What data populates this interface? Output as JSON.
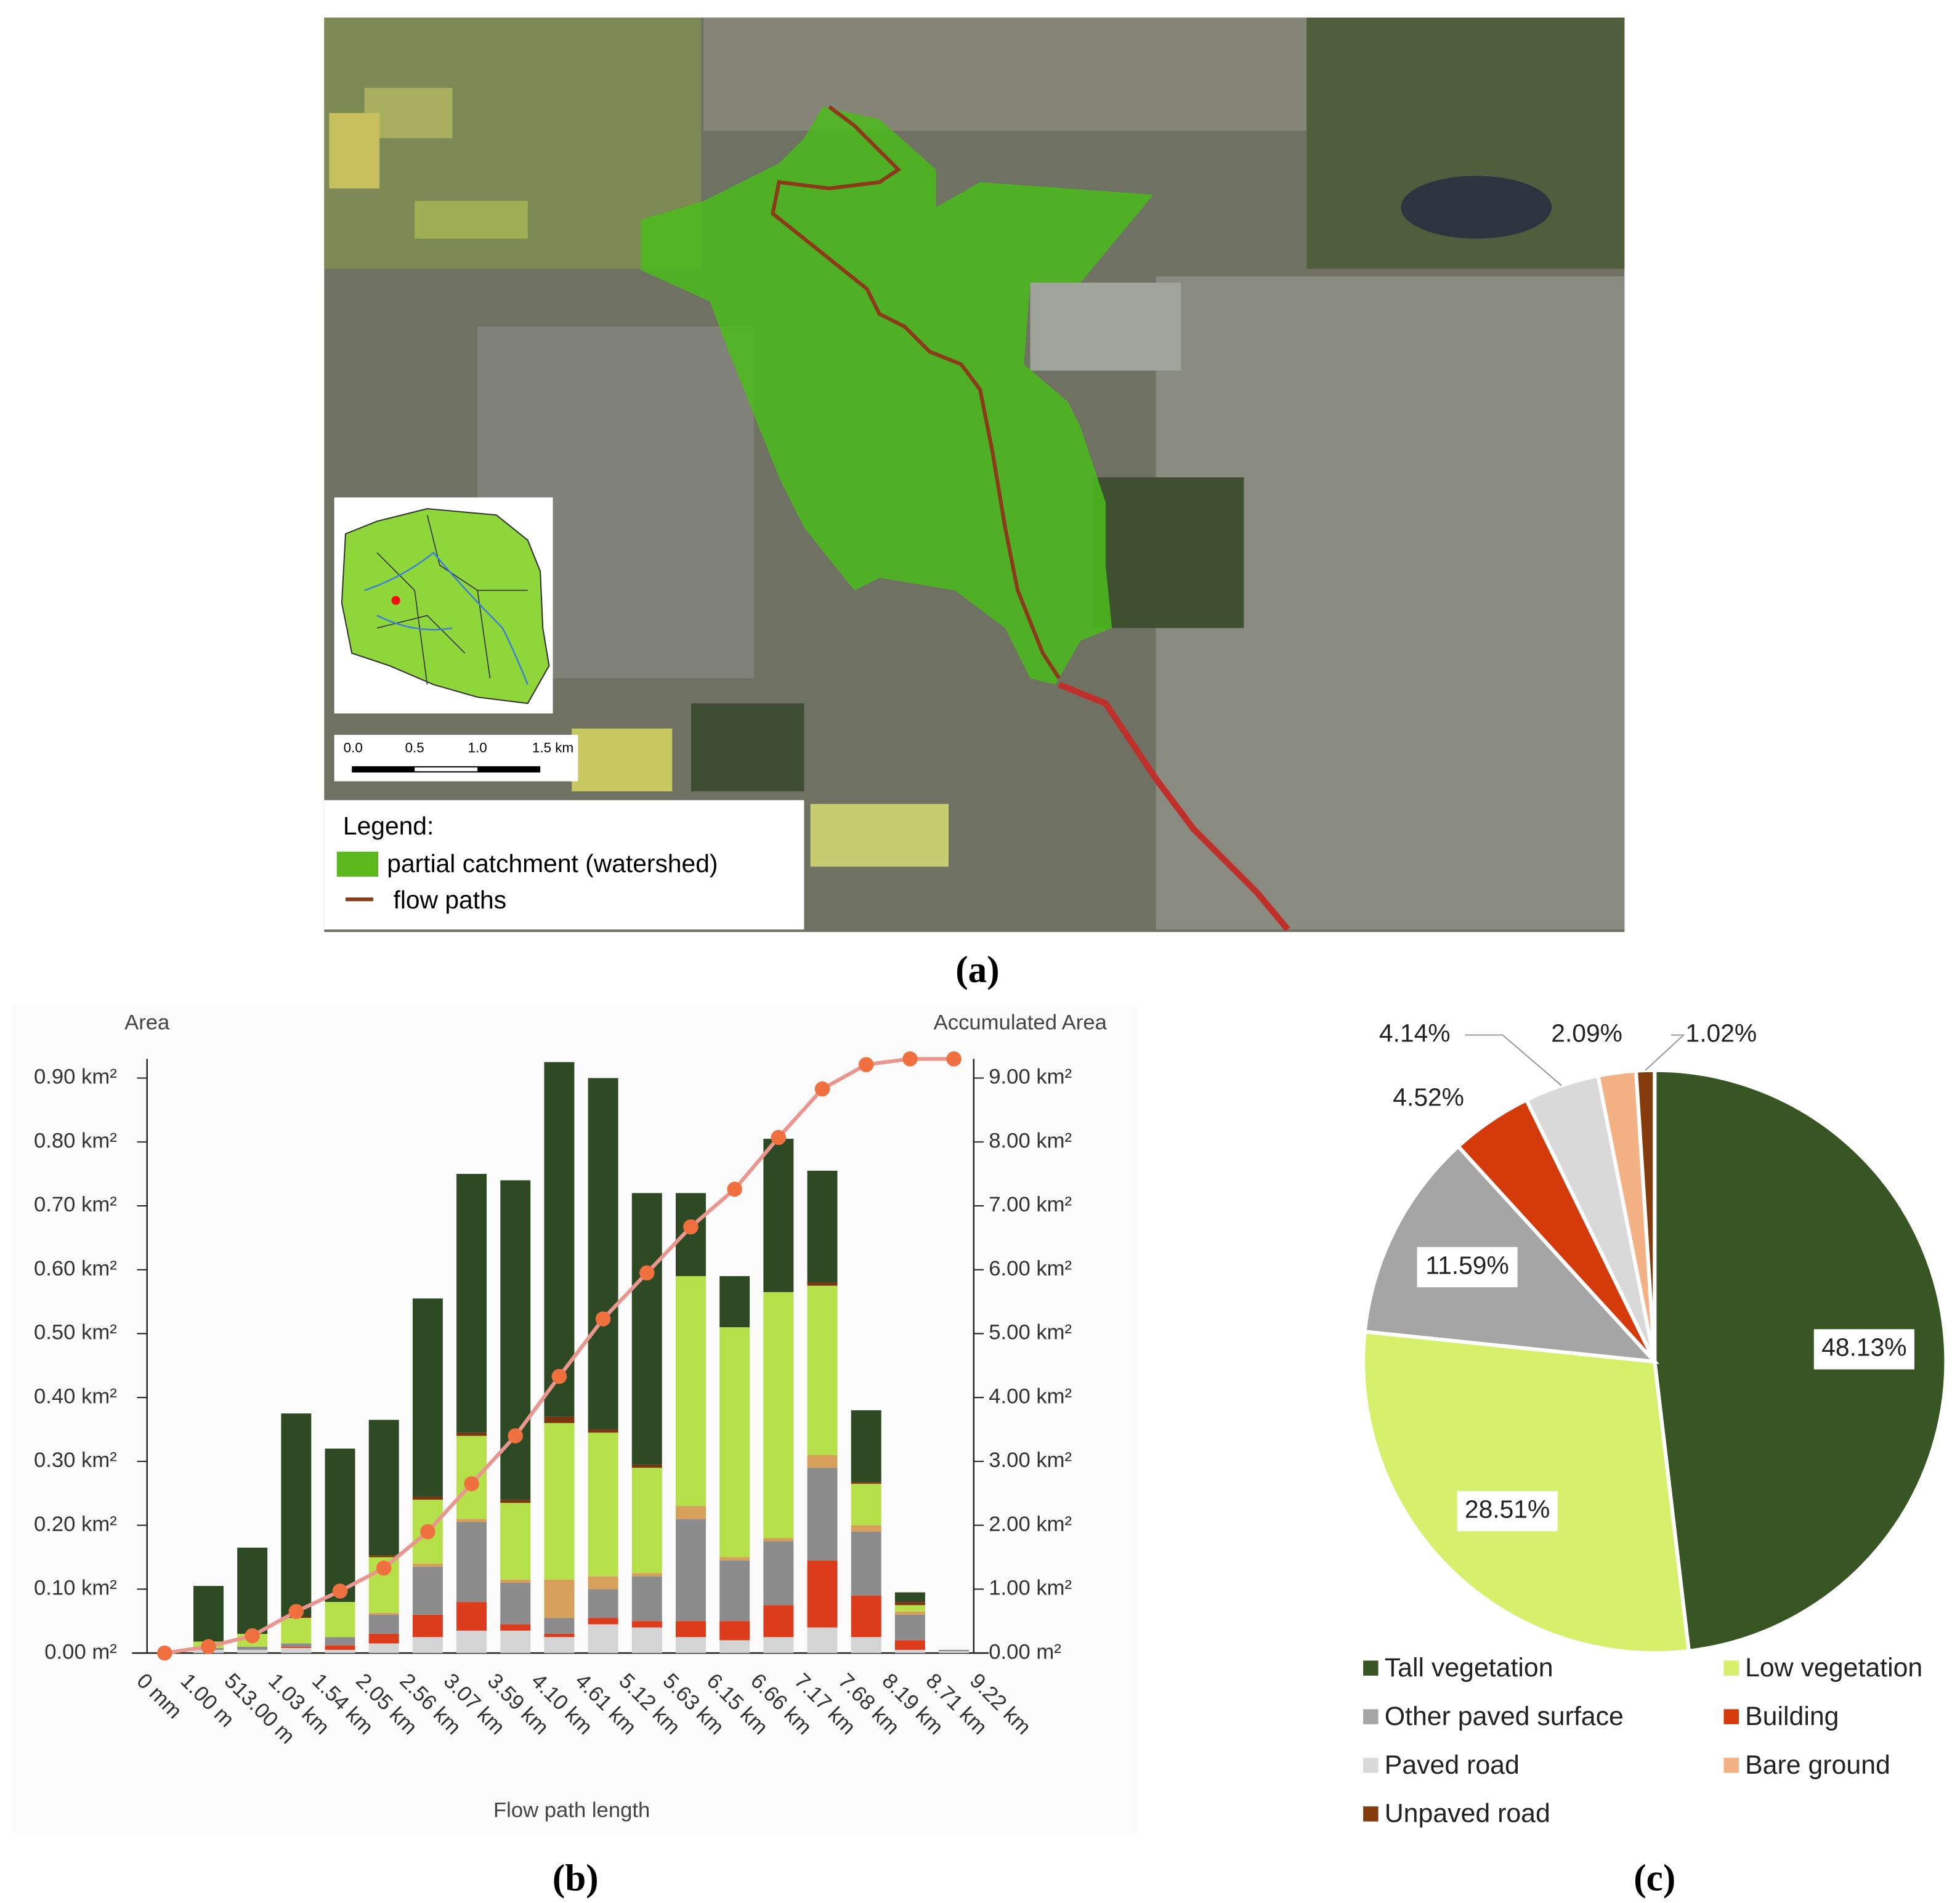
{
  "map": {
    "scale_labels": [
      "0.0",
      "0.5",
      "1.0",
      "1.5 km"
    ],
    "legend": {
      "title": "Legend:",
      "items": [
        "partial catchment (watershed)",
        "flow paths"
      ]
    }
  },
  "captions": [
    "(a)",
    "(b)",
    "(c)"
  ],
  "chart_data": [
    {
      "type": "bar",
      "stacked": true,
      "y_label": "Area",
      "y2_label": "Accumulated Area",
      "x_label": "Flow path length",
      "categories": [
        "0 mm",
        "1.00 m",
        "513.00 m",
        "1.03 km",
        "1.54 km",
        "2.05 km",
        "2.56 km",
        "3.07 km",
        "3.59 km",
        "4.10 km",
        "4.61 km",
        "5.12 km",
        "5.63 km",
        "6.15 km",
        "6.66 km",
        "7.17 km",
        "7.68 km",
        "8.19 km",
        "8.71 km",
        "9.22 km"
      ],
      "series": [
        {
          "color": "#d4d4d4",
          "values": [
            0,
            0.005,
            0.005,
            0.008,
            0.005,
            0.015,
            0.025,
            0.035,
            0.035,
            0.025,
            0.045,
            0.04,
            0.025,
            0.02,
            0.025,
            0.04,
            0.025,
            0.005,
            0.003,
            null
          ]
        },
        {
          "color": "#dd3c1c",
          "values": [
            0,
            0,
            0,
            0.002,
            0.007,
            0.015,
            0.035,
            0.045,
            0.01,
            0.005,
            0.01,
            0.01,
            0.025,
            0.03,
            0.05,
            0.105,
            0.065,
            0.015,
            0,
            null
          ]
        },
        {
          "color": "#8c8c8c",
          "values": [
            0,
            0.003,
            0.005,
            0.005,
            0.013,
            0.03,
            0.075,
            0.125,
            0.065,
            0.025,
            0.045,
            0.07,
            0.16,
            0.095,
            0.1,
            0.145,
            0.1,
            0.04,
            0.002,
            null
          ]
        },
        {
          "color": "#d6a05a",
          "values": [
            0,
            0,
            0,
            0,
            0,
            0.003,
            0.005,
            0.005,
            0.005,
            0.06,
            0.02,
            0.005,
            0.02,
            0.005,
            0.005,
            0.02,
            0.01,
            0.005,
            0,
            null
          ]
        },
        {
          "color": "#b5e04a",
          "values": [
            0,
            0.01,
            0.02,
            0.04,
            0.055,
            0.087,
            0.1,
            0.13,
            0.12,
            0.245,
            0.225,
            0.165,
            0.36,
            0.36,
            0.385,
            0.265,
            0.065,
            0.01,
            0,
            null
          ]
        },
        {
          "color": "#7a3410",
          "values": [
            0,
            0,
            0,
            0.002,
            0,
            0.003,
            0.005,
            0.005,
            0.005,
            0.01,
            0.005,
            0.005,
            0,
            0,
            0,
            0.005,
            0.003,
            0.005,
            0,
            null
          ]
        },
        {
          "color": "#2e4a25",
          "values": [
            0,
            0.087,
            0.135,
            0.318,
            0.24,
            0.212,
            0.31,
            0.405,
            0.5,
            0.555,
            0.55,
            0.425,
            0.13,
            0.08,
            0.24,
            0.175,
            0.112,
            0.015,
            0,
            null
          ]
        },
        {
          "type": "line",
          "axis": "y2",
          "color": "#e8968e",
          "marker_color": "#f07040",
          "values": [
            0,
            0.1,
            0.27,
            0.65,
            0.97,
            1.33,
            1.9,
            2.65,
            3.4,
            4.33,
            5.23,
            5.95,
            6.67,
            7.26,
            8.07,
            8.83,
            9.21,
            9.3,
            9.3,
            null
          ]
        }
      ],
      "ylim": [
        0,
        0.93
      ],
      "yticks": [
        {
          "value": 0,
          "label": "0.00 m²"
        },
        {
          "value": 0.1,
          "label": "0.10 km²"
        },
        {
          "value": 0.2,
          "label": "0.20 km²"
        },
        {
          "value": 0.3,
          "label": "0.30 km²"
        },
        {
          "value": 0.4,
          "label": "0.40 km²"
        },
        {
          "value": 0.5,
          "label": "0.50 km²"
        },
        {
          "value": 0.6,
          "label": "0.60 km²"
        },
        {
          "value": 0.7,
          "label": "0.70 km²"
        },
        {
          "value": 0.8,
          "label": "0.80 km²"
        },
        {
          "value": 0.9,
          "label": "0.90 km²"
        }
      ],
      "y2lim": [
        0,
        9.3
      ],
      "y2ticks": [
        {
          "value": 0,
          "label": "0.00 m²"
        },
        {
          "value": 1,
          "label": "1.00 km²"
        },
        {
          "value": 2,
          "label": "2.00 km²"
        },
        {
          "value": 3,
          "label": "3.00 km²"
        },
        {
          "value": 4,
          "label": "4.00 km²"
        },
        {
          "value": 5,
          "label": "5.00 km²"
        },
        {
          "value": 6,
          "label": "6.00 km²"
        },
        {
          "value": 7,
          "label": "7.00 km²"
        },
        {
          "value": 8,
          "label": "8.00 km²"
        },
        {
          "value": 9,
          "label": "9.00 km²"
        }
      ],
      "grid": false
    },
    {
      "type": "pie",
      "categories": [
        "Tall vegetation",
        "Low vegetation",
        "Other paved surface",
        "Building",
        "Paved road",
        "Bare ground",
        "Unpaved road"
      ],
      "values": [
        48.13,
        28.51,
        11.59,
        4.52,
        4.14,
        2.09,
        1.02
      ],
      "value_labels": [
        "48.13%",
        "28.51%",
        "11.59%",
        "4.52%",
        "4.14%",
        "2.09%",
        "1.02%"
      ],
      "colors": [
        "#375623",
        "#d7f06c",
        "#a5a5a5",
        "#d43a0a",
        "#d9d9d9",
        "#f4b183",
        "#843c0c"
      ],
      "legend": "bottom"
    }
  ]
}
